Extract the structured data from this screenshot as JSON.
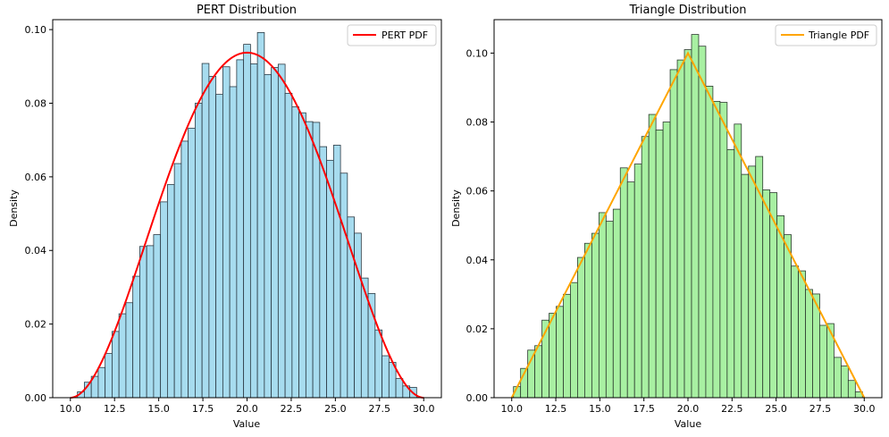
{
  "chart_data": [
    {
      "type": "bar",
      "title": "PERT Distribution",
      "xlabel": "Value",
      "ylabel": "Density",
      "xlim": [
        9.0,
        31.0
      ],
      "ylim": [
        0.0,
        0.1027
      ],
      "xticks": [
        10.0,
        12.5,
        15.0,
        17.5,
        20.0,
        22.5,
        25.0,
        27.5,
        30.0
      ],
      "xtick_labels": [
        "10.0",
        "12.5",
        "15.0",
        "17.5",
        "20.0",
        "22.5",
        "25.0",
        "27.5",
        "30.0"
      ],
      "yticks": [
        0.0,
        0.02,
        0.04,
        0.06,
        0.08,
        0.1
      ],
      "ytick_labels": [
        "0.00",
        "0.02",
        "0.04",
        "0.06",
        "0.08",
        "0.10"
      ],
      "bins_start": 10.4,
      "bins_end": 29.6,
      "values": [
        0.0016,
        0.0042,
        0.0058,
        0.0082,
        0.012,
        0.018,
        0.0228,
        0.0258,
        0.033,
        0.0411,
        0.0413,
        0.0443,
        0.0532,
        0.0579,
        0.0636,
        0.0697,
        0.0732,
        0.08,
        0.0908,
        0.0873,
        0.0824,
        0.0899,
        0.0845,
        0.0918,
        0.096,
        0.0907,
        0.0992,
        0.0878,
        0.0897,
        0.0906,
        0.0827,
        0.079,
        0.0774,
        0.075,
        0.0748,
        0.0682,
        0.0645,
        0.0686,
        0.061,
        0.0491,
        0.0447,
        0.0325,
        0.0283,
        0.0184,
        0.0114,
        0.0096,
        0.0052,
        0.0032,
        0.0028
      ],
      "bar_fill": "#a7dcef",
      "bar_edge": "#2b3a44",
      "pdf": {
        "label": "PERT PDF",
        "color": "#ff0000",
        "kind": "pert",
        "min": 10.0,
        "mode": 20.0,
        "max": 30.0,
        "lambda": 4
      }
    },
    {
      "type": "bar",
      "title": "Triangle Distribution",
      "xlabel": "Value",
      "ylabel": "Density",
      "xlim": [
        9.0,
        31.0
      ],
      "ylim": [
        0.0,
        0.1097
      ],
      "xticks": [
        10.0,
        12.5,
        15.0,
        17.5,
        20.0,
        22.5,
        25.0,
        27.5,
        30.0
      ],
      "xtick_labels": [
        "10.0",
        "12.5",
        "15.0",
        "17.5",
        "20.0",
        "22.5",
        "25.0",
        "27.5",
        "30.0"
      ],
      "yticks": [
        0.0,
        0.02,
        0.04,
        0.06,
        0.08,
        0.1
      ],
      "ytick_labels": [
        "0.00",
        "0.02",
        "0.04",
        "0.06",
        "0.08",
        "0.10"
      ],
      "bins_start": 10.1,
      "bins_end": 29.9,
      "values": [
        0.0032,
        0.0085,
        0.0138,
        0.0151,
        0.0225,
        0.0245,
        0.0265,
        0.03,
        0.0334,
        0.0407,
        0.0448,
        0.0477,
        0.0537,
        0.0512,
        0.0547,
        0.0667,
        0.0626,
        0.0678,
        0.0758,
        0.0822,
        0.0777,
        0.08,
        0.0952,
        0.098,
        0.101,
        0.1054,
        0.102,
        0.0904,
        0.086,
        0.0857,
        0.072,
        0.0794,
        0.0648,
        0.0672,
        0.07,
        0.0603,
        0.0595,
        0.0528,
        0.0473,
        0.0382,
        0.0368,
        0.0314,
        0.0301,
        0.021,
        0.0215,
        0.0117,
        0.0092,
        0.005,
        0.0017
      ],
      "bar_fill": "#a8f0a2",
      "bar_edge": "#2b3a2e",
      "pdf": {
        "label": "Triangle PDF",
        "color": "#ffa500",
        "kind": "triangle",
        "min": 10.0,
        "mode": 20.0,
        "max": 30.0
      }
    }
  ]
}
